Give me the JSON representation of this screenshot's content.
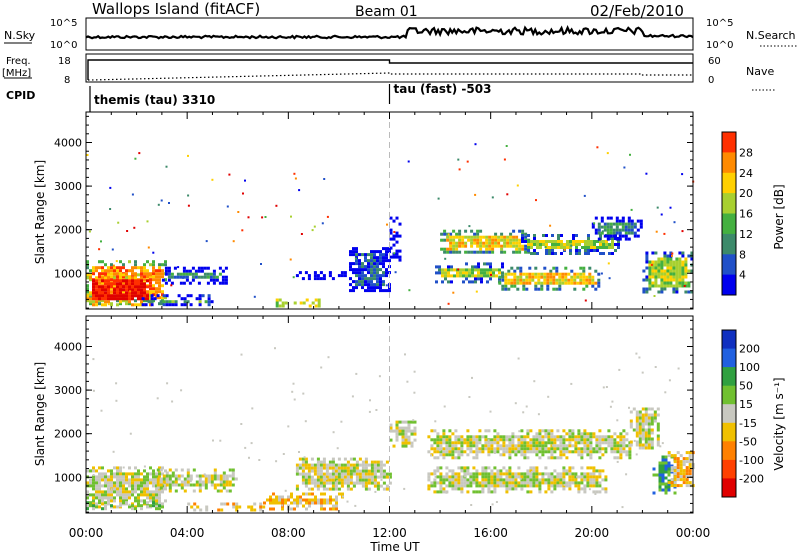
{
  "header": {
    "station": "Wallops Island (fitACF)",
    "beam": "Beam 01",
    "date": "02/Feb/2010"
  },
  "strip_labels": {
    "nsky": "N.Sky",
    "nsky_ticks": [
      "10^5",
      "10^0"
    ],
    "nsearch": "N.Search",
    "nsearch_ticks": [
      "10^5",
      "10^0"
    ],
    "freq_top": "Freq.",
    "freq_unit": "[MHz]",
    "freq_ticks": [
      "18",
      "8"
    ],
    "nave": "Nave",
    "nave_ticks": [
      "60",
      "0"
    ],
    "cpid": "CPID"
  },
  "cpid_modes": [
    {
      "name": "themis (tau) 3310",
      "start_hour": 0
    },
    {
      "name": "tau (fast) -503",
      "start_hour": 12
    }
  ],
  "colors": {
    "power": [
      "#0000ee",
      "#2050c8",
      "#3c8a6a",
      "#44b040",
      "#a8d030",
      "#ffd000",
      "#ff8a00",
      "#ff3000",
      "#e00000"
    ],
    "velocity": [
      "#1030c0",
      "#2060e0",
      "#30a040",
      "#70c030",
      "#c8c8c0",
      "#f0c000",
      "#ff8000",
      "#ff4000",
      "#e00000"
    ]
  },
  "chart_data": [
    {
      "type": "heatmap",
      "panel": "power",
      "ylabel": "Slant Range [km]",
      "ylim": [
        180,
        4700
      ],
      "yticks": [
        1000,
        2000,
        3000,
        4000
      ],
      "xlim": [
        0,
        24
      ],
      "colorbar": {
        "label": "Power [dB]",
        "ticks": [
          "4",
          "8",
          "12",
          "16",
          "20",
          "24",
          "28"
        ]
      },
      "echo_regions": [
        {
          "t0": 0.0,
          "t1": 3.2,
          "r0": 300,
          "r1": 1300,
          "level": 6
        },
        {
          "t0": 0.0,
          "t1": 2.6,
          "r0": 300,
          "r1": 1000,
          "level": 8
        },
        {
          "t0": 2.2,
          "t1": 5.0,
          "r0": 250,
          "r1": 520,
          "level": 3
        },
        {
          "t0": 3.0,
          "t1": 5.5,
          "r0": 800,
          "r1": 1150,
          "level": 2
        },
        {
          "t0": 7.5,
          "t1": 9.2,
          "r0": 280,
          "r1": 420,
          "level": 7
        },
        {
          "t0": 8.3,
          "t1": 10.3,
          "r0": 850,
          "r1": 1050,
          "level": 2
        },
        {
          "t0": 10.4,
          "t1": 12.0,
          "r0": 600,
          "r1": 1600,
          "level": 1
        },
        {
          "t0": 12.0,
          "t1": 12.4,
          "r0": 1300,
          "r1": 2300,
          "level": 1
        },
        {
          "t0": 14.0,
          "t1": 17.5,
          "r0": 1450,
          "r1": 2000,
          "level": 5
        },
        {
          "t0": 17.2,
          "t1": 21.0,
          "r0": 1450,
          "r1": 1900,
          "level": 4
        },
        {
          "t0": 13.8,
          "t1": 16.5,
          "r0": 800,
          "r1": 1250,
          "level": 4
        },
        {
          "t0": 16.3,
          "t1": 20.3,
          "r0": 650,
          "r1": 1150,
          "level": 5
        },
        {
          "t0": 20.0,
          "t1": 21.9,
          "r0": 1800,
          "r1": 2300,
          "level": 2
        },
        {
          "t0": 22.0,
          "t1": 24.0,
          "r0": 600,
          "r1": 1500,
          "level": 4
        }
      ]
    },
    {
      "type": "heatmap",
      "panel": "velocity",
      "ylabel": "Slant Range [km]",
      "xlabel": "Time UT",
      "ylim": [
        180,
        4700
      ],
      "yticks": [
        1000,
        2000,
        3000,
        4000
      ],
      "xlim": [
        0,
        24
      ],
      "xticks": [
        "00:00",
        "04:00",
        "08:00",
        "12:00",
        "16:00",
        "20:00",
        "00:00"
      ],
      "colorbar": {
        "label": "Velocity [m s⁻¹]",
        "ticks": [
          "200",
          "100",
          "50",
          "15",
          "-15",
          "-50",
          "-100",
          "-200"
        ]
      },
      "echo_regions": [
        {
          "t0": 0.0,
          "t1": 3.2,
          "r0": 350,
          "r1": 1250,
          "level": 4
        },
        {
          "t0": 0.0,
          "t1": 3.0,
          "r0": 250,
          "r1": 450,
          "level": 3
        },
        {
          "t0": 2.8,
          "t1": 6.0,
          "r0": 700,
          "r1": 1200,
          "level": 4
        },
        {
          "t0": 4.0,
          "t1": 7.0,
          "r0": 230,
          "r1": 420,
          "level": 5
        },
        {
          "t0": 7.0,
          "t1": 10.2,
          "r0": 250,
          "r1": 650,
          "level": 5
        },
        {
          "t0": 8.3,
          "t1": 12.0,
          "r0": 750,
          "r1": 1450,
          "level": 4
        },
        {
          "t0": 12.0,
          "t1": 13.0,
          "r0": 1700,
          "r1": 2300,
          "level": 4
        },
        {
          "t0": 13.5,
          "t1": 21.5,
          "r0": 1450,
          "r1": 2100,
          "level": 4
        },
        {
          "t0": 13.5,
          "t1": 20.5,
          "r0": 650,
          "r1": 1250,
          "level": 4
        },
        {
          "t0": 21.5,
          "t1": 22.6,
          "r0": 1700,
          "r1": 2600,
          "level": 4
        },
        {
          "t0": 22.4,
          "t1": 23.3,
          "r0": 650,
          "r1": 1500,
          "level": 2
        },
        {
          "t0": 23.0,
          "t1": 24.0,
          "r0": 800,
          "r1": 1600,
          "level": 5
        }
      ]
    }
  ]
}
